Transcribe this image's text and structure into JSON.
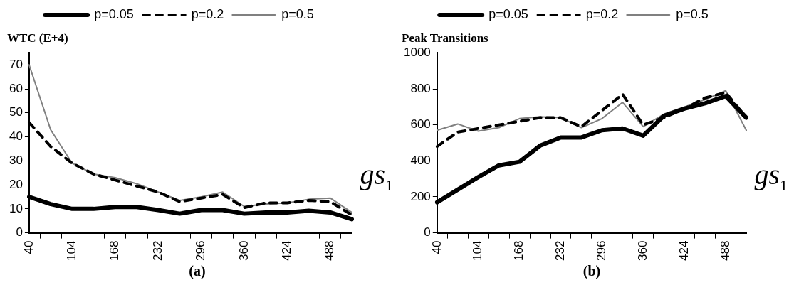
{
  "chart_data": [
    {
      "type": "line",
      "title": "WTC (E+4)",
      "xlabel": "gs$_{1}$",
      "annotations": [
        "(a)"
      ],
      "categories": [
        "40",
        null,
        "104",
        null,
        "168",
        null,
        "232",
        null,
        "296",
        null,
        "360",
        null,
        "424",
        null,
        "488",
        null
      ],
      "ylim": [
        0,
        75
      ],
      "yticks": [
        0,
        10,
        20,
        30,
        40,
        50,
        60,
        70
      ],
      "grid": false,
      "legend": "top",
      "marker": "none",
      "series": [
        {
          "name": "p=0.05",
          "color": "#000000",
          "line_style": "solid",
          "values": [
            15,
            12,
            10,
            10,
            10.8,
            10.8,
            9.5,
            8,
            9.5,
            9.5,
            8,
            8.5,
            8.5,
            9.2,
            8.5,
            5.7
          ]
        },
        {
          "name": "p=0.2",
          "color": "#000000",
          "line_style": "dashed",
          "values": [
            46,
            36,
            29,
            24.5,
            22,
            19.5,
            17,
            13,
            14.5,
            16,
            10.5,
            12.5,
            12.5,
            13.5,
            13,
            7.5
          ]
        },
        {
          "name": "p=0.5",
          "color": "#808080",
          "line_style": "solid",
          "values": [
            70,
            43,
            29,
            24.5,
            23,
            20.5,
            17,
            13.5,
            15,
            17,
            11,
            12,
            12.5,
            14,
            14.5,
            8.5
          ]
        }
      ]
    },
    {
      "type": "line",
      "title": "Peak Transitions",
      "xlabel": "gs$_{1}$",
      "annotations": [
        "(b)"
      ],
      "categories": [
        "40",
        null,
        "104",
        null,
        "168",
        null,
        "232",
        null,
        "296",
        null,
        "360",
        null,
        "424",
        null,
        "488",
        null
      ],
      "ylim": [
        0,
        1000
      ],
      "yticks": [
        0,
        200,
        400,
        600,
        800,
        1000
      ],
      "grid": false,
      "legend": "top",
      "marker": "none",
      "series": [
        {
          "name": "p=0.05",
          "color": "#000000",
          "line_style": "solid",
          "values": [
            170,
            240,
            310,
            375,
            395,
            485,
            530,
            530,
            570,
            580,
            540,
            650,
            690,
            720,
            760,
            640
          ]
        },
        {
          "name": "p=0.2",
          "color": "#000000",
          "line_style": "dashed",
          "values": [
            480,
            560,
            580,
            600,
            620,
            640,
            640,
            590,
            680,
            770,
            600,
            640,
            690,
            750,
            780,
            640
          ]
        },
        {
          "name": "p=0.5",
          "color": "#808080",
          "line_style": "solid",
          "values": [
            570,
            605,
            565,
            585,
            635,
            645,
            640,
            585,
            635,
            725,
            590,
            660,
            700,
            740,
            790,
            570
          ]
        }
      ]
    }
  ]
}
